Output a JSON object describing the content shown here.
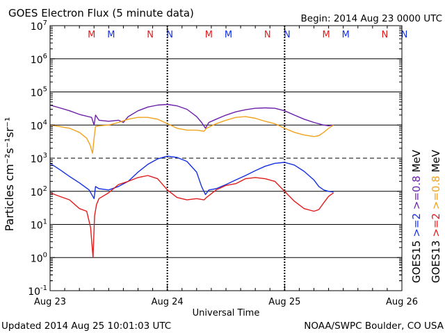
{
  "header": {
    "title": "GOES Electron Flux (5 minute data)",
    "begin": "Begin: 2014 Aug 23 0000 UTC"
  },
  "footer": {
    "updated": "Updated 2014 Aug 25 10:01:03 UTC",
    "credit": "NOAA/SWPC Boulder, CO USA"
  },
  "colors": {
    "purple": "#6a1fa8",
    "orange": "#f2a21c",
    "blue": "#1530e0",
    "red": "#e01c1c",
    "marker_m": "#e01c1c",
    "marker_n_red": "#e01c1c",
    "marker_n_blue": "#1530e0"
  },
  "chart_data": {
    "type": "line",
    "title": "GOES Electron Flux (5 minute data)",
    "xlabel": "Universal Time",
    "ylabel": "Particles cm⁻²s⁻¹sr⁻¹",
    "x_domain": [
      0,
      72
    ],
    "x_ticks": [
      {
        "x": 0,
        "label": "Aug 23"
      },
      {
        "x": 24,
        "label": "Aug 24"
      },
      {
        "x": 48,
        "label": "Aug 25"
      },
      {
        "x": 72,
        "label": "Aug 26"
      }
    ],
    "y_log": true,
    "ylim": [
      0.1,
      10000000
    ],
    "y_ticks": [
      {
        "exp": 7,
        "label": "10",
        "sup": "7"
      },
      {
        "exp": 6,
        "label": "10",
        "sup": "6"
      },
      {
        "exp": 5,
        "label": "10",
        "sup": "5"
      },
      {
        "exp": 4,
        "label": "10",
        "sup": "4"
      },
      {
        "exp": 3,
        "label": "10",
        "sup": "3"
      },
      {
        "exp": 2,
        "label": "10",
        "sup": "2"
      },
      {
        "exp": 1,
        "label": "10",
        "sup": "1"
      },
      {
        "exp": 0,
        "label": "10",
        "sup": "0"
      },
      {
        "exp": -1,
        "label": "10",
        "sup": "-1"
      }
    ],
    "solid_gridlines_exp": [
      6,
      5,
      4,
      2,
      1,
      0
    ],
    "dashed_gridlines_exp": [
      3
    ],
    "day_dividers_x": [
      24,
      48
    ],
    "markers": [
      {
        "x": 8.5,
        "label": "M",
        "color": "#e01c1c"
      },
      {
        "x": 12.5,
        "label": "M",
        "color": "#1530e0"
      },
      {
        "x": 20.5,
        "label": "N",
        "color": "#e01c1c"
      },
      {
        "x": 24.5,
        "label": "N",
        "color": "#1530e0"
      },
      {
        "x": 32.5,
        "label": "M",
        "color": "#e01c1c"
      },
      {
        "x": 36.5,
        "label": "M",
        "color": "#1530e0"
      },
      {
        "x": 44.5,
        "label": "N",
        "color": "#e01c1c"
      },
      {
        "x": 48.5,
        "label": "N",
        "color": "#1530e0"
      },
      {
        "x": 56.5,
        "label": "M",
        "color": "#e01c1c"
      },
      {
        "x": 60.5,
        "label": "M",
        "color": "#1530e0"
      },
      {
        "x": 68.5,
        "label": "N",
        "color": "#e01c1c"
      },
      {
        "x": 72.5,
        "label": "N",
        "color": "#1530e0"
      }
    ],
    "legend": {
      "col1": [
        {
          "text": "GOES15",
          "color": "#000000"
        },
        {
          "text": ">=2",
          "color": "#1530e0"
        },
        {
          "text": ">=0.8",
          "color": "#6a1fa8"
        },
        {
          "text": "MeV",
          "color": "#000000"
        }
      ],
      "col2": [
        {
          "text": "GOES13",
          "color": "#000000"
        },
        {
          "text": ">=2",
          "color": "#e01c1c"
        },
        {
          "text": ">=0.8",
          "color": "#f2a21c"
        },
        {
          "text": "MeV",
          "color": "#000000"
        }
      ]
    },
    "series": [
      {
        "name": "GOES15 >=0.8 MeV",
        "color": "#6a1fa8",
        "points": [
          [
            0,
            40000
          ],
          [
            2,
            33000
          ],
          [
            4,
            27000
          ],
          [
            6,
            21000
          ],
          [
            8.5,
            17000
          ],
          [
            9.0,
            10000
          ],
          [
            9.3,
            20000
          ],
          [
            10,
            14000
          ],
          [
            12,
            13000
          ],
          [
            14,
            14000
          ],
          [
            15,
            12000
          ],
          [
            16,
            18000
          ],
          [
            18,
            27000
          ],
          [
            20,
            35000
          ],
          [
            22,
            40000
          ],
          [
            24,
            42000
          ],
          [
            26,
            38000
          ],
          [
            28,
            30000
          ],
          [
            30,
            18000
          ],
          [
            31,
            12000
          ],
          [
            31.8,
            8000
          ],
          [
            32.5,
            12000
          ],
          [
            34,
            15000
          ],
          [
            36,
            20000
          ],
          [
            38,
            25000
          ],
          [
            40,
            29000
          ],
          [
            42,
            32000
          ],
          [
            44,
            33000
          ],
          [
            46,
            32000
          ],
          [
            48,
            27000
          ],
          [
            50,
            20000
          ],
          [
            52,
            15000
          ],
          [
            54,
            12000
          ],
          [
            56,
            10000
          ],
          [
            57,
            9500
          ],
          [
            58,
            10000
          ]
        ]
      },
      {
        "name": "GOES13 >=0.8 MeV",
        "color": "#f2a21c",
        "points": [
          [
            0,
            10000
          ],
          [
            2,
            9000
          ],
          [
            4,
            8000
          ],
          [
            6,
            6000
          ],
          [
            7.5,
            4000
          ],
          [
            8.2,
            2500
          ],
          [
            8.7,
            1400
          ],
          [
            9.0,
            4000
          ],
          [
            9.3,
            9000
          ],
          [
            10,
            9500
          ],
          [
            12,
            10000
          ],
          [
            14,
            12000
          ],
          [
            16,
            15000
          ],
          [
            18,
            17000
          ],
          [
            20,
            17000
          ],
          [
            22,
            15000
          ],
          [
            24,
            11000
          ],
          [
            26,
            8000
          ],
          [
            28,
            7000
          ],
          [
            30,
            7000
          ],
          [
            31.5,
            6500
          ],
          [
            32,
            8000
          ],
          [
            34,
            11000
          ],
          [
            36,
            14000
          ],
          [
            38,
            17000
          ],
          [
            40,
            18000
          ],
          [
            42,
            16000
          ],
          [
            44,
            13000
          ],
          [
            46,
            11000
          ],
          [
            48,
            8000
          ],
          [
            50,
            6000
          ],
          [
            52,
            5000
          ],
          [
            54,
            4500
          ],
          [
            55,
            4800
          ],
          [
            56,
            6000
          ],
          [
            57,
            8000
          ],
          [
            58,
            10000
          ]
        ]
      },
      {
        "name": "GOES15 >=2 MeV",
        "color": "#1530e0",
        "points": [
          [
            0,
            700
          ],
          [
            2,
            450
          ],
          [
            4,
            280
          ],
          [
            6,
            180
          ],
          [
            8,
            110
          ],
          [
            9.0,
            60
          ],
          [
            9.3,
            140
          ],
          [
            10,
            120
          ],
          [
            12,
            110
          ],
          [
            14,
            140
          ],
          [
            16,
            200
          ],
          [
            18,
            380
          ],
          [
            20,
            650
          ],
          [
            22,
            950
          ],
          [
            24,
            1150
          ],
          [
            26,
            1050
          ],
          [
            28,
            800
          ],
          [
            30,
            380
          ],
          [
            31,
            140
          ],
          [
            31.8,
            80
          ],
          [
            32.5,
            110
          ],
          [
            34,
            120
          ],
          [
            36,
            160
          ],
          [
            38,
            220
          ],
          [
            40,
            300
          ],
          [
            42,
            420
          ],
          [
            44,
            570
          ],
          [
            46,
            700
          ],
          [
            48,
            750
          ],
          [
            50,
            620
          ],
          [
            52,
            400
          ],
          [
            54,
            220
          ],
          [
            55,
            140
          ],
          [
            56,
            110
          ],
          [
            57,
            100
          ],
          [
            58,
            95
          ]
        ]
      },
      {
        "name": "GOES13 >=2 MeV",
        "color": "#e01c1c",
        "points": [
          [
            0,
            90
          ],
          [
            2,
            70
          ],
          [
            4,
            55
          ],
          [
            6,
            30
          ],
          [
            7.5,
            25
          ],
          [
            8.3,
            8
          ],
          [
            8.8,
            1
          ],
          [
            9.1,
            18
          ],
          [
            9.5,
            40
          ],
          [
            10,
            60
          ],
          [
            12,
            90
          ],
          [
            14,
            160
          ],
          [
            16,
            200
          ],
          [
            18,
            260
          ],
          [
            20,
            300
          ],
          [
            22,
            240
          ],
          [
            24,
            110
          ],
          [
            26,
            65
          ],
          [
            28,
            55
          ],
          [
            30,
            60
          ],
          [
            31.5,
            55
          ],
          [
            32,
            65
          ],
          [
            34,
            110
          ],
          [
            36,
            150
          ],
          [
            38,
            170
          ],
          [
            40,
            240
          ],
          [
            42,
            260
          ],
          [
            44,
            240
          ],
          [
            46,
            200
          ],
          [
            48,
            100
          ],
          [
            50,
            50
          ],
          [
            52,
            30
          ],
          [
            54,
            25
          ],
          [
            55,
            28
          ],
          [
            56,
            45
          ],
          [
            57,
            70
          ],
          [
            58,
            90
          ]
        ]
      }
    ]
  }
}
